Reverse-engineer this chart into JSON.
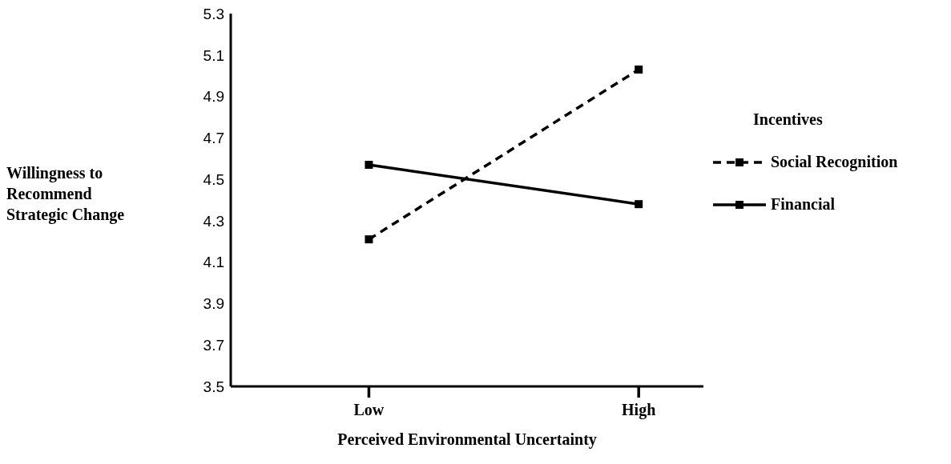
{
  "chart_data": {
    "type": "line",
    "xlabel": "Perceived Environmental Uncertainty",
    "ylabel": "Willingness to Recommend Strategic Change",
    "legend_title": "Incentives",
    "categories": [
      "Low",
      "High"
    ],
    "series": [
      {
        "name": "Social Recognition",
        "color": "#000000",
        "values": [
          4.21,
          5.03
        ],
        "line_style": "dashed"
      },
      {
        "name": "Financial",
        "color": "#000000",
        "values": [
          4.57,
          4.38
        ],
        "line_style": "solid"
      }
    ],
    "ylim": [
      3.5,
      5.3
    ],
    "yticks": [
      3.5,
      3.7,
      3.9,
      4.1,
      4.3,
      4.5,
      4.7,
      4.9,
      5.1,
      5.3
    ],
    "grid": false,
    "legend": "right",
    "marker": "square"
  }
}
